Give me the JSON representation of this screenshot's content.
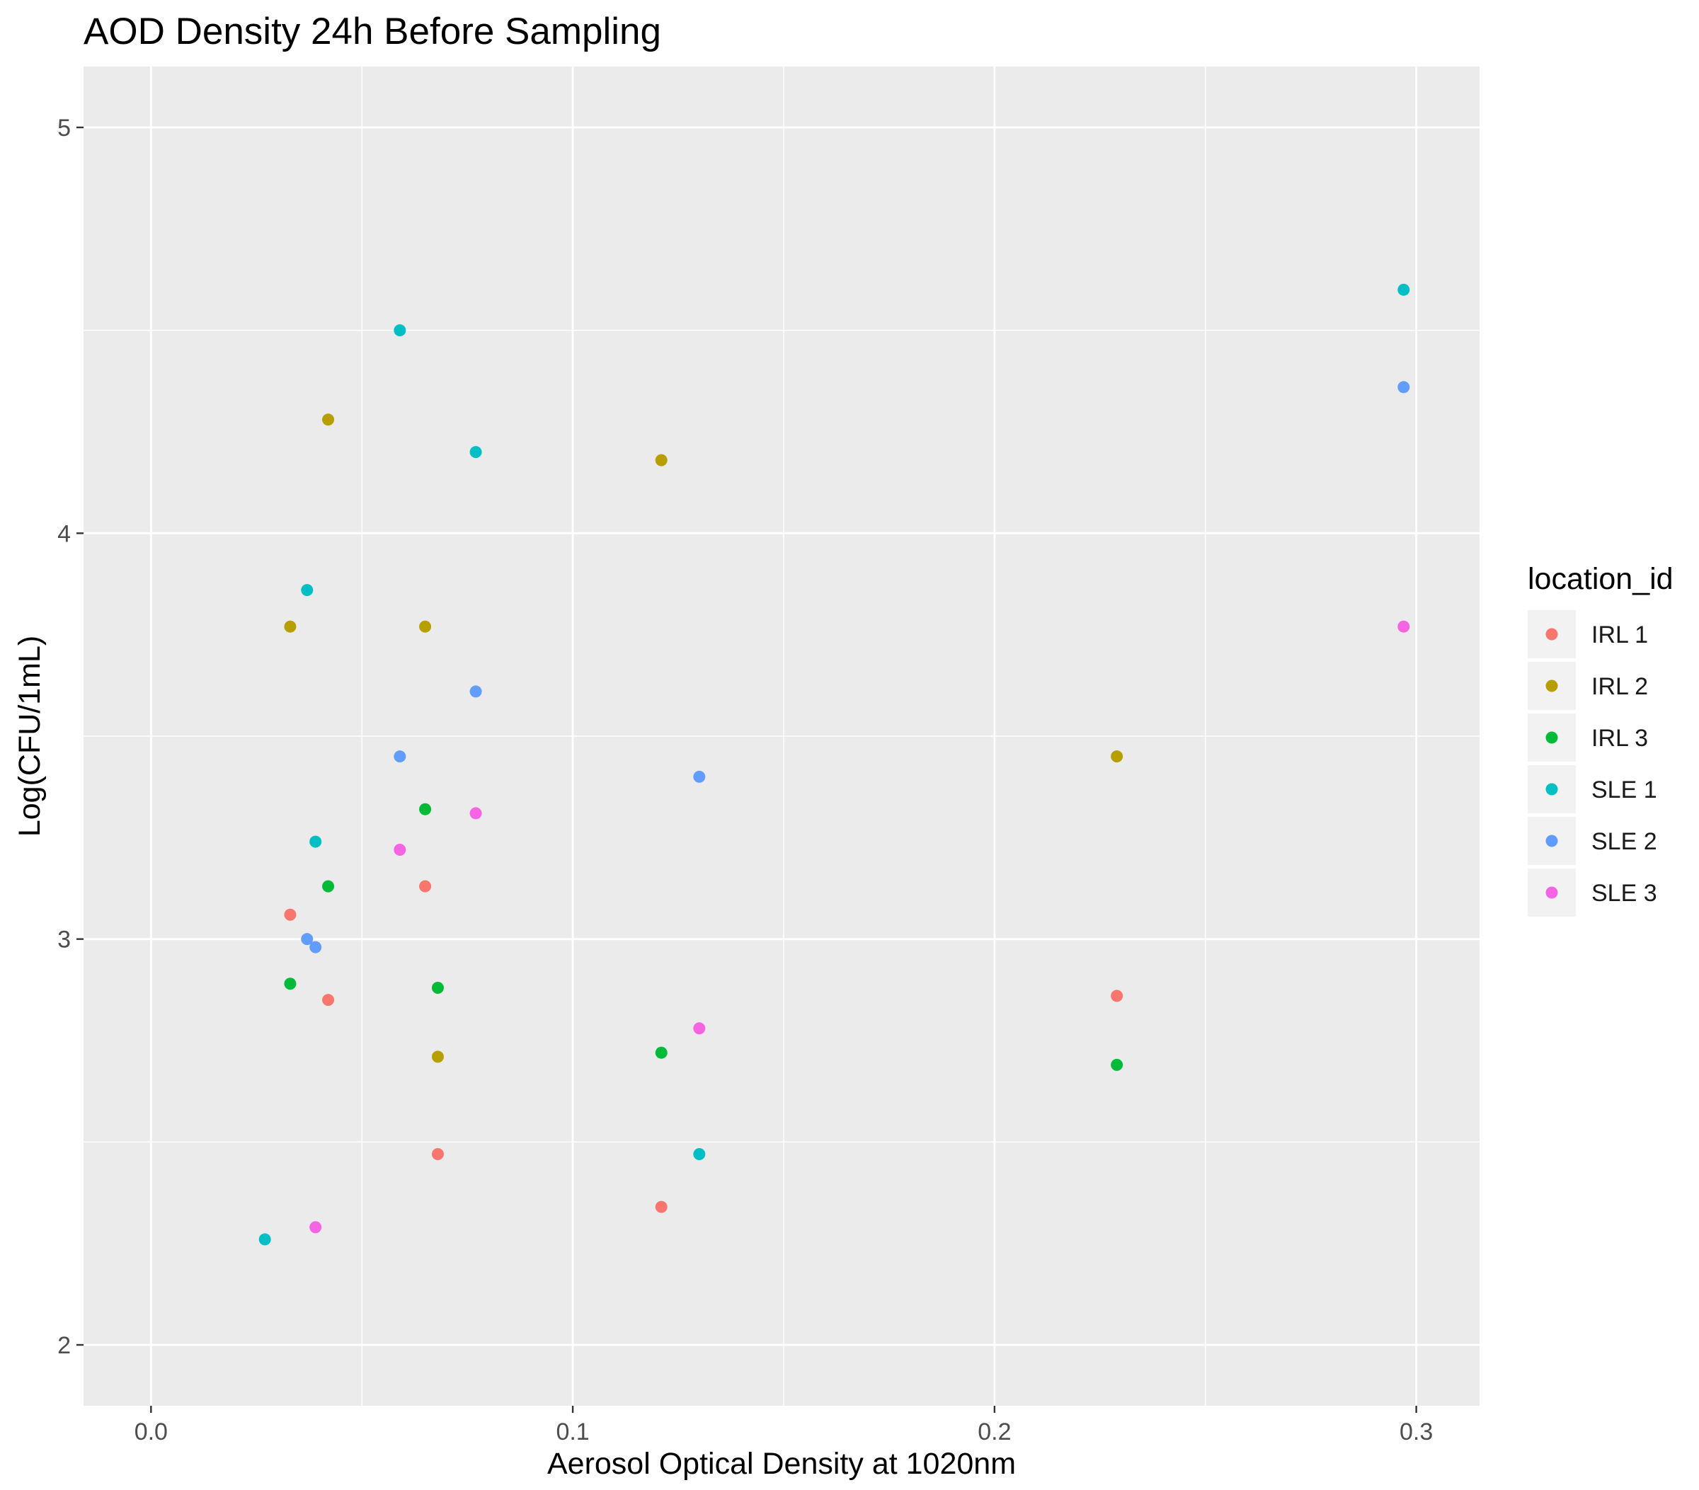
{
  "chart_data": {
    "type": "scatter",
    "title": "AOD Density 24h Before Sampling",
    "xlabel": "Aerosol Optical Density at 1020nm",
    "ylabel": "Log(CFU/1mL)",
    "xlim": [
      -0.016,
      0.315
    ],
    "ylim": [
      1.85,
      5.15
    ],
    "xticks": [
      0.0,
      0.1,
      0.2,
      0.3
    ],
    "xtick_labels": [
      "0.0",
      "0.1",
      "0.2",
      "0.3"
    ],
    "yticks": [
      2,
      3,
      4,
      5
    ],
    "ytick_labels": [
      "2",
      "3",
      "4",
      "5"
    ],
    "grid": true,
    "legend": {
      "title": "location_id",
      "position": "right"
    },
    "series": [
      {
        "name": "IRL 1",
        "color": "#F8766D",
        "x": [
          0.033,
          0.042,
          0.065,
          0.068,
          0.121,
          0.229
        ],
        "y": [
          3.06,
          2.85,
          3.13,
          2.47,
          2.34,
          2.86
        ]
      },
      {
        "name": "IRL 2",
        "color": "#B79F00",
        "x": [
          0.033,
          0.042,
          0.065,
          0.068,
          0.121,
          0.229
        ],
        "y": [
          3.77,
          4.28,
          3.77,
          2.71,
          4.18,
          3.45
        ]
      },
      {
        "name": "IRL 3",
        "color": "#00BA38",
        "x": [
          0.033,
          0.042,
          0.065,
          0.068,
          0.121,
          0.229
        ],
        "y": [
          2.89,
          3.13,
          3.32,
          2.88,
          2.72,
          2.69
        ]
      },
      {
        "name": "SLE 1",
        "color": "#00BFC4",
        "x": [
          0.027,
          0.037,
          0.039,
          0.059,
          0.077,
          0.13,
          0.297
        ],
        "y": [
          2.26,
          3.86,
          3.24,
          4.5,
          4.2,
          2.47,
          4.6
        ]
      },
      {
        "name": "SLE 2",
        "color": "#619CFF",
        "x": [
          0.037,
          0.039,
          0.059,
          0.077,
          0.13,
          0.297
        ],
        "y": [
          3.0,
          2.98,
          3.45,
          3.61,
          3.4,
          4.36
        ]
      },
      {
        "name": "SLE 3",
        "color": "#F564E3",
        "x": [
          0.039,
          0.059,
          0.077,
          0.13,
          0.297
        ],
        "y": [
          2.29,
          3.22,
          3.31,
          2.78,
          3.77
        ]
      }
    ]
  }
}
